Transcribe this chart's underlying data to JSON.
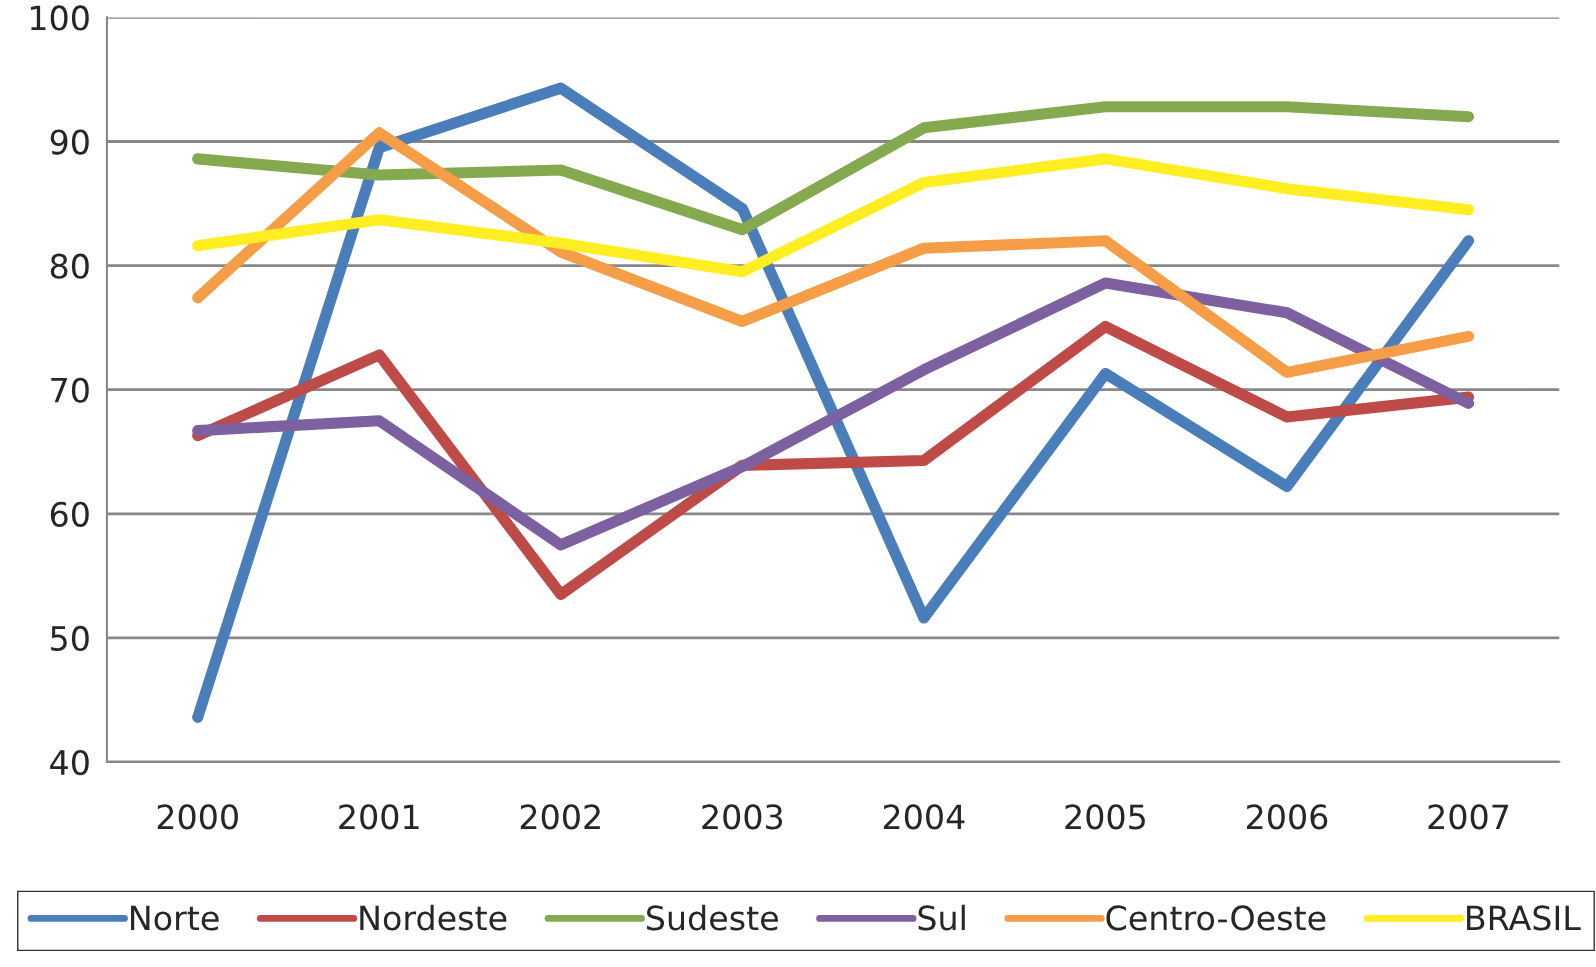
{
  "chart_data": {
    "type": "line",
    "categories": [
      "2000",
      "2001",
      "2002",
      "2003",
      "2004",
      "2005",
      "2006",
      "2007"
    ],
    "series": [
      {
        "name": "Norte",
        "color": "#4a7ebb",
        "values": [
          43.6,
          89.5,
          94.3,
          84.6,
          51.6,
          71.3,
          62.2,
          82.0
        ]
      },
      {
        "name": "Nordeste",
        "color": "#be4b48",
        "values": [
          66.3,
          72.8,
          53.5,
          63.9,
          64.3,
          75.1,
          67.8,
          69.4
        ]
      },
      {
        "name": "Sudeste",
        "color": "#84a94f",
        "values": [
          88.6,
          87.3,
          87.7,
          82.9,
          91.1,
          92.8,
          92.8,
          92.0
        ]
      },
      {
        "name": "Sul",
        "color": "#7d60a0",
        "values": [
          66.7,
          67.5,
          57.5,
          63.8,
          71.6,
          78.6,
          76.2,
          68.9
        ]
      },
      {
        "name": "Centro-Oeste",
        "color": "#f59d47",
        "values": [
          77.4,
          90.7,
          81.1,
          75.5,
          81.4,
          82.0,
          71.4,
          74.3
        ]
      },
      {
        "name": "BRASIL",
        "color": "#ffee22",
        "values": [
          81.6,
          83.7,
          81.8,
          79.5,
          86.7,
          88.6,
          86.2,
          84.5
        ]
      }
    ],
    "ylim": [
      40,
      100
    ],
    "yticks": [
      40,
      50,
      60,
      70,
      80,
      90,
      100
    ],
    "grid": "y",
    "legend": "bottom",
    "marker": "none",
    "line_style": "solid"
  }
}
